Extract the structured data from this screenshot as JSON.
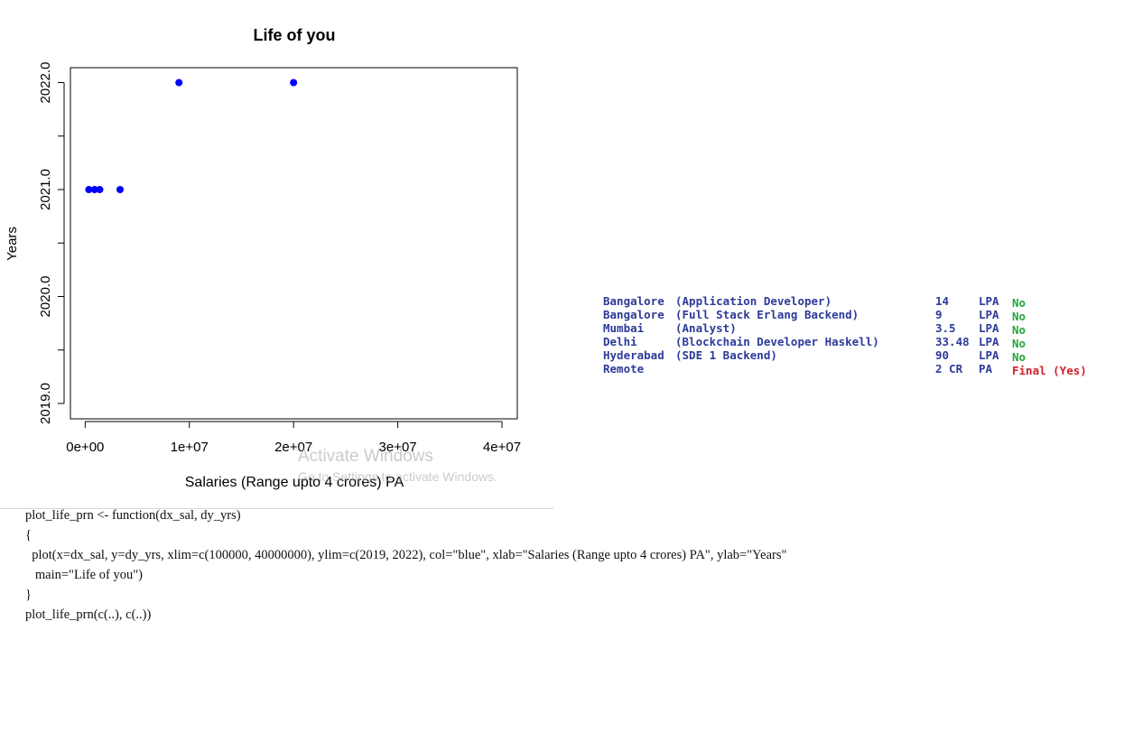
{
  "chart_data": {
    "type": "scatter",
    "title": "Life of you",
    "xlabel": "Salaries (Range upto 4 crores) PA",
    "ylabel": "Years",
    "xlim": [
      100000,
      40000000
    ],
    "ylim": [
      2019,
      2022
    ],
    "x_ticks": [
      0,
      10000000,
      20000000,
      30000000,
      40000000
    ],
    "x_tick_labels": [
      "0e+00",
      "1e+07",
      "2e+07",
      "3e+07",
      "4e+07"
    ],
    "y_ticks": [
      2019,
      2019.5,
      2020,
      2020.5,
      2021,
      2021.5,
      2022
    ],
    "y_tick_labels": [
      "2019.0",
      "",
      "2020.0",
      "",
      "2021.0",
      "",
      "2022.0"
    ],
    "point_color": "#0000ff",
    "grid": false,
    "points": [
      {
        "x": 350000,
        "y": 2021
      },
      {
        "x": 900000,
        "y": 2021
      },
      {
        "x": 1400000,
        "y": 2021
      },
      {
        "x": 3350000,
        "y": 2021
      },
      {
        "x": 9000000,
        "y": 2022
      },
      {
        "x": 20000000,
        "y": 2022
      }
    ]
  },
  "watermark": {
    "title": "Activate Windows",
    "subtitle": "Go to Settings to activate Windows."
  },
  "jobs": [
    {
      "city": "Bangalore",
      "role": "(Application Developer)",
      "amount": "14",
      "unit": "LPA",
      "status": "No"
    },
    {
      "city": "Bangalore",
      "role": "(Full Stack Erlang Backend)",
      "amount": "9",
      "unit": "LPA",
      "status": "No"
    },
    {
      "city": "Mumbai",
      "role": "(Analyst)",
      "amount": "3.5",
      "unit": "LPA",
      "status": "No"
    },
    {
      "city": "Delhi",
      "role": "(Blockchain Developer Haskell)",
      "amount": "33.48",
      "unit": "LPA",
      "status": "No"
    },
    {
      "city": "Hyderabad",
      "role": "(SDE 1 Backend)",
      "amount": "90",
      "unit": "LPA",
      "status": "No"
    },
    {
      "city": "Remote",
      "role": "",
      "amount": "2 CR",
      "unit": "PA",
      "status": "Final (Yes)"
    }
  ],
  "code": {
    "lines": [
      "plot_life_prn <- function(dx_sal, dy_yrs)",
      "{",
      "  plot(x=dx_sal, y=dy_yrs, xlim=c(100000, 40000000), ylim=c(2019, 2022), col=\"blue\", xlab=\"Salaries (Range upto 4 crores) PA\", ylab=\"Years\"",
      "   main=\"Life of you\")",
      "}",
      "plot_life_prn(c(..), c(..))"
    ]
  }
}
